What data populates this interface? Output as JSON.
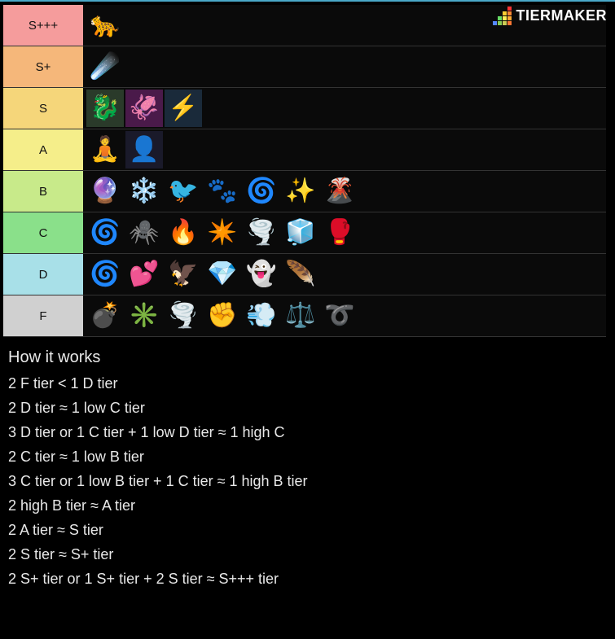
{
  "watermark": {
    "text": "TIERMAKER",
    "grid_colors": [
      "transparent",
      "transparent",
      "transparent",
      "#ff3333",
      "transparent",
      "transparent",
      "#ffcc33",
      "#ff8833",
      "transparent",
      "#66dd66",
      "#ffee55",
      "#ffaa33",
      "#5588ff",
      "#88cc55",
      "#cccc55",
      "#ff7733"
    ]
  },
  "tiers": [
    {
      "label": "S+++",
      "bg": "#f59c9c",
      "items": [
        {
          "name": "leopard",
          "emoji": "🐆",
          "bg": ""
        }
      ]
    },
    {
      "label": "S+",
      "bg": "#f5b77a",
      "items": [
        {
          "name": "dough",
          "emoji": "☄️",
          "bg": ""
        }
      ]
    },
    {
      "label": "S",
      "bg": "#f5d67a",
      "items": [
        {
          "name": "dragon",
          "emoji": "🐉",
          "bg": "#2a3a2a"
        },
        {
          "name": "venom",
          "emoji": "🦑",
          "bg": "#4a1a4a"
        },
        {
          "name": "rumble",
          "emoji": "⚡",
          "bg": "#1a2a3a"
        }
      ]
    },
    {
      "label": "A",
      "bg": "#f5ee8a",
      "items": [
        {
          "name": "buddha",
          "emoji": "🧘",
          "bg": ""
        },
        {
          "name": "shadow",
          "emoji": "👤",
          "bg": "#1a1a2a"
        }
      ]
    },
    {
      "label": "B",
      "bg": "#c8ea8a",
      "items": [
        {
          "name": "dark",
          "emoji": "🔮",
          "bg": ""
        },
        {
          "name": "blizzard",
          "emoji": "❄️",
          "bg": ""
        },
        {
          "name": "phoenix",
          "emoji": "🐦",
          "bg": ""
        },
        {
          "name": "paw",
          "emoji": "🐾",
          "bg": ""
        },
        {
          "name": "control",
          "emoji": "🌀",
          "bg": ""
        },
        {
          "name": "light",
          "emoji": "✨",
          "bg": ""
        },
        {
          "name": "magma",
          "emoji": "🌋",
          "bg": ""
        }
      ]
    },
    {
      "label": "C",
      "bg": "#8ae08a",
      "items": [
        {
          "name": "portal",
          "emoji": "🌀",
          "bg": ""
        },
        {
          "name": "spider",
          "emoji": "🕷️",
          "bg": ""
        },
        {
          "name": "flame",
          "emoji": "🔥",
          "bg": ""
        },
        {
          "name": "quake",
          "emoji": "✴️",
          "bg": ""
        },
        {
          "name": "sand",
          "emoji": "🌪️",
          "bg": ""
        },
        {
          "name": "ice",
          "emoji": "🧊",
          "bg": ""
        },
        {
          "name": "rubber",
          "emoji": "🥊",
          "bg": ""
        }
      ]
    },
    {
      "label": "D",
      "bg": "#a8e0e8",
      "items": [
        {
          "name": "spin",
          "emoji": "🌀",
          "bg": ""
        },
        {
          "name": "love",
          "emoji": "💕",
          "bg": ""
        },
        {
          "name": "falcon",
          "emoji": "🦅",
          "bg": ""
        },
        {
          "name": "diamond",
          "emoji": "💎",
          "bg": ""
        },
        {
          "name": "revive",
          "emoji": "👻",
          "bg": ""
        },
        {
          "name": "barrier",
          "emoji": "🪶",
          "bg": ""
        }
      ]
    },
    {
      "label": "F",
      "bg": "#d0d0d0",
      "items": [
        {
          "name": "bomb",
          "emoji": "💣",
          "bg": ""
        },
        {
          "name": "spike",
          "emoji": "✳️",
          "bg": ""
        },
        {
          "name": "smoke",
          "emoji": "🌪️",
          "bg": ""
        },
        {
          "name": "chop",
          "emoji": "✊",
          "bg": ""
        },
        {
          "name": "gas",
          "emoji": "💨",
          "bg": ""
        },
        {
          "name": "kilo",
          "emoji": "⚖️",
          "bg": ""
        },
        {
          "name": "spring",
          "emoji": "➰",
          "bg": ""
        }
      ]
    }
  ],
  "explanation": {
    "title": "How it works",
    "lines": [
      "2 F tier < 1 D tier",
      "2 D tier ≈ 1 low C tier",
      "3 D tier or 1 C tier + 1 low D tier ≈ 1 high C",
      "2 C tier ≈ 1 low B tier",
      "3 C tier or 1 low B tier + 1 C tier ≈ 1 high B tier",
      "2 high B tier ≈ A tier",
      "2 A tier ≈ S tier",
      "2 S tier ≈ S+ tier",
      "2 S+ tier or 1 S+ tier + 2 S tier ≈ S+++ tier"
    ]
  }
}
